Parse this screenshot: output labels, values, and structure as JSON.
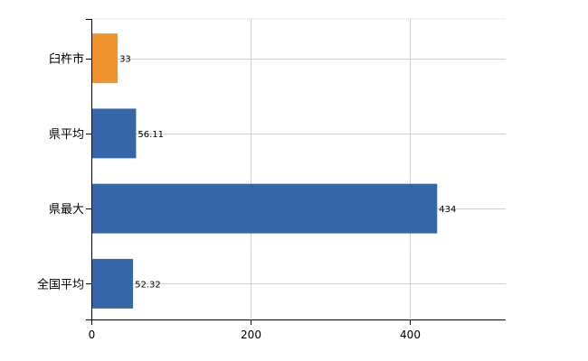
{
  "chart_data": {
    "type": "bar",
    "orientation": "horizontal",
    "categories": [
      "臼杵市",
      "県平均",
      "県最大",
      "全国平均"
    ],
    "values": [
      33,
      56.11,
      434,
      52.32
    ],
    "value_labels": [
      "33",
      "56.11",
      "434",
      "52.32"
    ],
    "bar_colors": [
      "#f0922e",
      "#3567a8",
      "#3567a8",
      "#3567a8"
    ],
    "x_ticks": [
      "0",
      "200",
      "400"
    ],
    "xlim": [
      0,
      520
    ],
    "grid": true,
    "title": "",
    "xlabel": "",
    "ylabel": ""
  }
}
